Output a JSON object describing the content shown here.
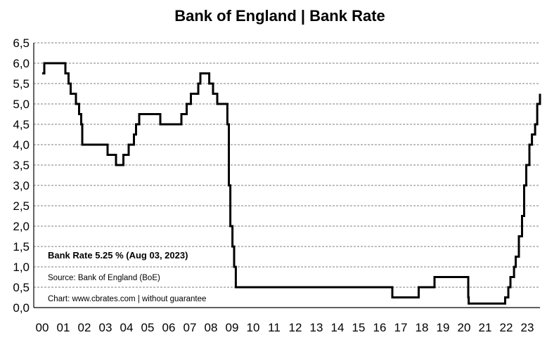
{
  "chart_data": {
    "type": "line",
    "title": "Bank of England | Bank Rate",
    "xlabel": "",
    "ylabel": "",
    "ylim": [
      0,
      6.5
    ],
    "xlim": [
      2000,
      2024
    ],
    "grid": true,
    "y_ticks": [
      "0,0",
      "0,5",
      "1,0",
      "1,5",
      "2,0",
      "2,5",
      "3,0",
      "3,5",
      "4,0",
      "4,5",
      "5,0",
      "5,5",
      "6,0",
      "6,5"
    ],
    "x_ticks": [
      "00",
      "01",
      "02",
      "03",
      "04",
      "05",
      "06",
      "07",
      "08",
      "09",
      "10",
      "11",
      "12",
      "13",
      "14",
      "15",
      "16",
      "17",
      "18",
      "19",
      "20",
      "21",
      "22",
      "23"
    ],
    "annotations": {
      "current": "Bank Rate 5.25 % (Aug 03, 2023)",
      "source": "Source: Bank of England (BoE)",
      "credit": "Chart: www.cbrates.com  | without guarantee"
    },
    "series": [
      {
        "points": [
          [
            2000.0,
            5.75
          ],
          [
            2000.1,
            6.0
          ],
          [
            2001.1,
            5.75
          ],
          [
            2001.25,
            5.5
          ],
          [
            2001.35,
            5.25
          ],
          [
            2001.6,
            5.0
          ],
          [
            2001.75,
            4.75
          ],
          [
            2001.85,
            4.5
          ],
          [
            2001.9,
            4.0
          ],
          [
            2003.1,
            3.75
          ],
          [
            2003.5,
            3.5
          ],
          [
            2003.85,
            3.75
          ],
          [
            2004.1,
            4.0
          ],
          [
            2004.35,
            4.25
          ],
          [
            2004.45,
            4.5
          ],
          [
            2004.6,
            4.75
          ],
          [
            2005.6,
            4.5
          ],
          [
            2006.6,
            4.75
          ],
          [
            2006.85,
            5.0
          ],
          [
            2007.05,
            5.25
          ],
          [
            2007.4,
            5.5
          ],
          [
            2007.5,
            5.75
          ],
          [
            2007.92,
            5.5
          ],
          [
            2008.1,
            5.25
          ],
          [
            2008.3,
            5.0
          ],
          [
            2008.78,
            4.5
          ],
          [
            2008.85,
            3.0
          ],
          [
            2008.92,
            2.0
          ],
          [
            2009.02,
            1.5
          ],
          [
            2009.1,
            1.0
          ],
          [
            2009.18,
            0.5
          ],
          [
            2016.6,
            0.25
          ],
          [
            2017.85,
            0.5
          ],
          [
            2018.6,
            0.75
          ],
          [
            2020.2,
            0.25
          ],
          [
            2020.22,
            0.1
          ],
          [
            2021.95,
            0.25
          ],
          [
            2022.1,
            0.5
          ],
          [
            2022.2,
            0.75
          ],
          [
            2022.37,
            1.0
          ],
          [
            2022.45,
            1.25
          ],
          [
            2022.6,
            1.75
          ],
          [
            2022.75,
            2.25
          ],
          [
            2022.85,
            3.0
          ],
          [
            2022.95,
            3.5
          ],
          [
            2023.1,
            4.0
          ],
          [
            2023.22,
            4.25
          ],
          [
            2023.37,
            4.5
          ],
          [
            2023.47,
            5.0
          ],
          [
            2023.6,
            5.25
          ]
        ]
      }
    ]
  }
}
